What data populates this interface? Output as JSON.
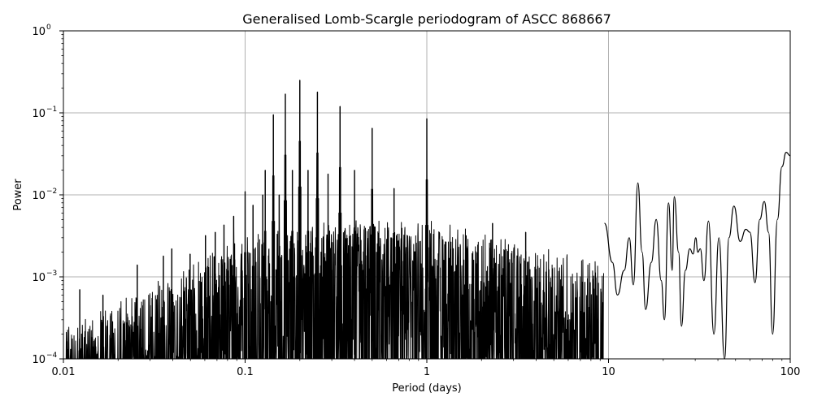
{
  "chart_data": {
    "type": "line",
    "title": "Generalised Lomb-Scargle periodogram of ASCC 868667",
    "xlabel": "Period (days)",
    "ylabel": "Power",
    "xscale": "log",
    "yscale": "log",
    "xlim": [
      0.01,
      100
    ],
    "ylim": [
      0.0001,
      1
    ],
    "grid": true,
    "x_ticks": [
      {
        "value": 0.01,
        "label": "0.01"
      },
      {
        "value": 0.1,
        "label": "0.1"
      },
      {
        "value": 1,
        "label": "1"
      },
      {
        "value": 10,
        "label": "10"
      },
      {
        "value": 100,
        "label": "100"
      }
    ],
    "y_ticks": [
      {
        "value": 0.0001,
        "base": "10",
        "exponent": "−4"
      },
      {
        "value": 0.001,
        "base": "10",
        "exponent": "−3"
      },
      {
        "value": 0.01,
        "base": "10",
        "exponent": "−2"
      },
      {
        "value": 0.1,
        "base": "10",
        "exponent": "−1"
      },
      {
        "value": 1,
        "base": "10",
        "exponent": "0"
      }
    ],
    "line_color": "#000000",
    "grid_color": "#b0b0b0",
    "peaks": [
      {
        "period": 0.0123,
        "power": 0.0007
      },
      {
        "period": 0.0165,
        "power": 0.0006
      },
      {
        "period": 0.0255,
        "power": 0.0014
      },
      {
        "period": 0.0355,
        "power": 0.0018
      },
      {
        "period": 0.0395,
        "power": 0.0022
      },
      {
        "period": 0.0498,
        "power": 0.0019
      },
      {
        "period": 0.0605,
        "power": 0.0032
      },
      {
        "period": 0.0685,
        "power": 0.0035
      },
      {
        "period": 0.0765,
        "power": 0.0043
      },
      {
        "period": 0.0865,
        "power": 0.0055
      },
      {
        "period": 0.1,
        "power": 0.011
      },
      {
        "period": 0.1105,
        "power": 0.0075
      },
      {
        "period": 0.125,
        "power": 0.01
      },
      {
        "period": 0.129,
        "power": 0.02
      },
      {
        "period": 0.143,
        "power": 0.095
      },
      {
        "period": 0.154,
        "power": 0.01
      },
      {
        "period": 0.1665,
        "power": 0.17
      },
      {
        "period": 0.182,
        "power": 0.02
      },
      {
        "period": 0.2,
        "power": 0.25
      },
      {
        "period": 0.222,
        "power": 0.02
      },
      {
        "period": 0.25,
        "power": 0.18
      },
      {
        "period": 0.286,
        "power": 0.018
      },
      {
        "period": 0.333,
        "power": 0.12
      },
      {
        "period": 0.4,
        "power": 0.02
      },
      {
        "period": 0.5,
        "power": 0.065
      },
      {
        "period": 0.66,
        "power": 0.012
      },
      {
        "period": 1.0,
        "power": 0.085
      },
      {
        "period": 2.3,
        "power": 0.0045
      },
      {
        "period": 3.5,
        "power": 0.0035
      }
    ],
    "lowfreq_curve": [
      [
        9.5,
        0.0045
      ],
      [
        10.5,
        0.0015
      ],
      [
        11.2,
        0.0006
      ],
      [
        12.2,
        0.0012
      ],
      [
        13.0,
        0.003
      ],
      [
        13.7,
        0.0008
      ],
      [
        14.5,
        0.014
      ],
      [
        15.3,
        0.002
      ],
      [
        16.0,
        0.0004
      ],
      [
        17.2,
        0.0015
      ],
      [
        18.3,
        0.005
      ],
      [
        19.5,
        0.0009
      ],
      [
        20.3,
        0.0003
      ],
      [
        21.4,
        0.008
      ],
      [
        22.4,
        0.0012
      ],
      [
        23.0,
        0.0095
      ],
      [
        24.3,
        0.002
      ],
      [
        25.2,
        0.00025
      ],
      [
        26.5,
        0.0012
      ],
      [
        28.0,
        0.0022
      ],
      [
        29.2,
        0.0019
      ],
      [
        30.2,
        0.003
      ],
      [
        31.0,
        0.002
      ],
      [
        32.0,
        0.0022
      ],
      [
        33.5,
        0.0009
      ],
      [
        35.5,
        0.0048
      ],
      [
        38.0,
        0.0002
      ],
      [
        40.5,
        0.003
      ],
      [
        43.5,
        8e-05
      ],
      [
        46.0,
        0.003
      ],
      [
        49.0,
        0.0073
      ],
      [
        53.0,
        0.0027
      ],
      [
        57.0,
        0.0038
      ],
      [
        60.0,
        0.0035
      ],
      [
        64.0,
        0.00085
      ],
      [
        68.0,
        0.005
      ],
      [
        72.0,
        0.0083
      ],
      [
        76.0,
        0.0035
      ],
      [
        80.0,
        0.0002
      ],
      [
        85.0,
        0.005
      ],
      [
        90.0,
        0.022
      ],
      [
        95.0,
        0.033
      ],
      [
        100.0,
        0.03
      ]
    ]
  }
}
